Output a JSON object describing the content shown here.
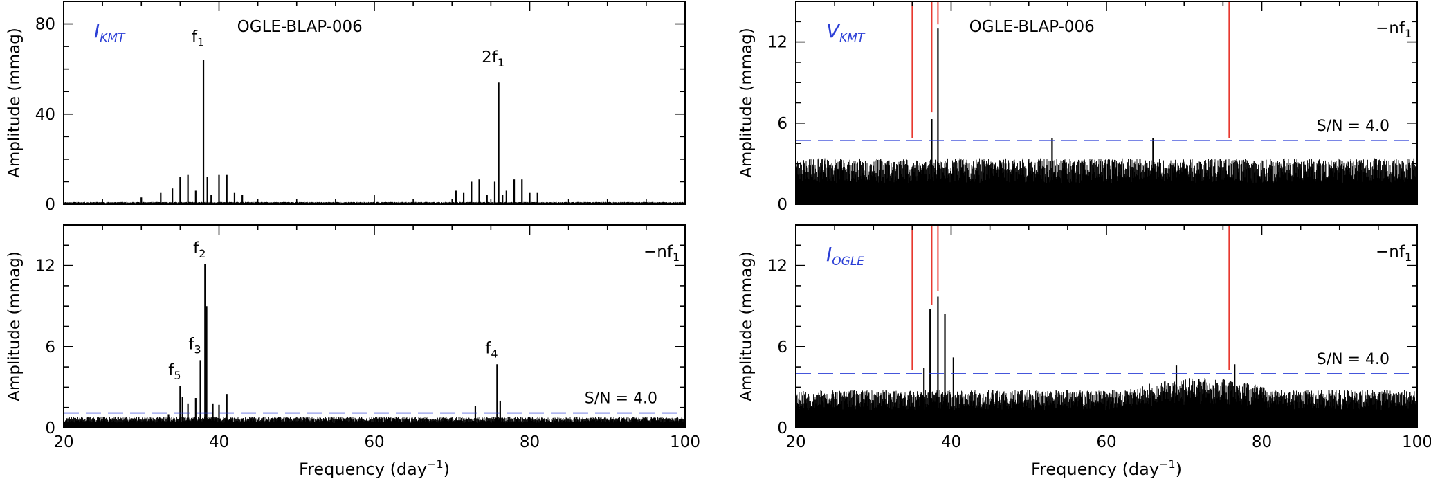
{
  "figure": {
    "xlabel_main": "Frequency (day",
    "xlabel_sup": "−1",
    "xlabel_end": ")",
    "ylabel": "Amplitude (mmag)",
    "colors": {
      "axis": "#000000",
      "red": "#e8382f",
      "blue": "#2b3fd6",
      "black": "#000000"
    }
  },
  "chart_data": [
    {
      "id": "top-left",
      "type": "line",
      "title": "OGLE-BLAP-006",
      "band_label": {
        "main": "I",
        "sub": "KMT"
      },
      "corner_label": "",
      "xlim": [
        20,
        100
      ],
      "ylim": [
        0,
        90
      ],
      "yticks": [
        0,
        40,
        80
      ],
      "xticks": [
        20,
        40,
        60,
        80,
        100
      ],
      "show_xtick_labels": false,
      "noise_level": 1.0,
      "noise_seed": 11,
      "peaks": [
        {
          "x": 30.0,
          "y": 3
        },
        {
          "x": 32.5,
          "y": 5
        },
        {
          "x": 34.0,
          "y": 7
        },
        {
          "x": 35.0,
          "y": 12
        },
        {
          "x": 36.0,
          "y": 13
        },
        {
          "x": 37.0,
          "y": 6
        },
        {
          "x": 38.0,
          "y": 64
        },
        {
          "x": 38.5,
          "y": 12
        },
        {
          "x": 39.0,
          "y": 4
        },
        {
          "x": 40.0,
          "y": 13
        },
        {
          "x": 41.0,
          "y": 13
        },
        {
          "x": 42.0,
          "y": 5
        },
        {
          "x": 43.0,
          "y": 4
        },
        {
          "x": 70.5,
          "y": 6
        },
        {
          "x": 71.5,
          "y": 5
        },
        {
          "x": 72.5,
          "y": 10
        },
        {
          "x": 73.5,
          "y": 11
        },
        {
          "x": 74.5,
          "y": 4
        },
        {
          "x": 75.5,
          "y": 10
        },
        {
          "x": 76.0,
          "y": 54
        },
        {
          "x": 76.5,
          "y": 4
        },
        {
          "x": 77.0,
          "y": 6
        },
        {
          "x": 78.0,
          "y": 11
        },
        {
          "x": 79.0,
          "y": 11
        },
        {
          "x": 80.0,
          "y": 5
        },
        {
          "x": 81.0,
          "y": 5
        }
      ],
      "threshold": null,
      "threshold_label": "",
      "red_lines": [],
      "annotations": [
        {
          "x": 38.0,
          "y": 72,
          "main": "f",
          "sub": "1"
        },
        {
          "x": 76.0,
          "y": 63,
          "main": "2f",
          "sub": "1"
        }
      ]
    },
    {
      "id": "top-right",
      "type": "line",
      "title": "OGLE-BLAP-006",
      "band_label": {
        "main": "V",
        "sub": "KMT"
      },
      "corner_label": {
        "main": "−nf",
        "sub": "1"
      },
      "xlim": [
        20,
        100
      ],
      "ylim": [
        0,
        15
      ],
      "yticks": [
        0,
        6,
        12
      ],
      "xticks": [
        20,
        40,
        60,
        80,
        100
      ],
      "show_xtick_labels": false,
      "noise_level": 3.4,
      "noise_seed": 23,
      "peaks": [
        {
          "x": 37.5,
          "y": 6.3
        },
        {
          "x": 38.3,
          "y": 13.0
        },
        {
          "x": 53.0,
          "y": 4.9
        },
        {
          "x": 66.0,
          "y": 4.9
        }
      ],
      "threshold": 4.7,
      "threshold_label": "S/N = 4.0",
      "red_lines": [
        {
          "x": 35.0,
          "y_from": 4.9
        },
        {
          "x": 37.5,
          "y_from": 6.8
        },
        {
          "x": 38.3,
          "y_from": 13.3
        },
        {
          "x": 75.8,
          "y_from": 4.9
        }
      ],
      "annotations": []
    },
    {
      "id": "bottom-left",
      "type": "line",
      "title": "",
      "band_label": null,
      "corner_label": {
        "main": "−nf",
        "sub": "1"
      },
      "xlim": [
        20,
        100
      ],
      "ylim": [
        0,
        15
      ],
      "yticks": [
        0,
        6,
        12
      ],
      "xticks": [
        20,
        40,
        60,
        80,
        100
      ],
      "show_xtick_labels": true,
      "noise_level": 0.8,
      "noise_seed": 37,
      "peaks": [
        {
          "x": 33.5,
          "y": 1.0
        },
        {
          "x": 35.0,
          "y": 3.1
        },
        {
          "x": 35.3,
          "y": 2.3
        },
        {
          "x": 36.0,
          "y": 1.8
        },
        {
          "x": 37.0,
          "y": 2.2
        },
        {
          "x": 37.6,
          "y": 5.0
        },
        {
          "x": 38.2,
          "y": 12.1
        },
        {
          "x": 38.4,
          "y": 9.0
        },
        {
          "x": 39.2,
          "y": 1.8
        },
        {
          "x": 40.0,
          "y": 1.7
        },
        {
          "x": 41.0,
          "y": 2.5
        },
        {
          "x": 73.0,
          "y": 1.6
        },
        {
          "x": 75.8,
          "y": 4.7
        },
        {
          "x": 76.2,
          "y": 2.0
        }
      ],
      "threshold": 1.1,
      "threshold_label": "S/N = 4.0",
      "red_lines": [],
      "annotations": [
        {
          "x": 35.0,
          "y": 3.9,
          "main": "f",
          "sub": "5"
        },
        {
          "x": 37.6,
          "y": 5.8,
          "main": "f",
          "sub": "3"
        },
        {
          "x": 38.2,
          "y": 12.9,
          "main": "f",
          "sub": "2"
        },
        {
          "x": 75.8,
          "y": 5.5,
          "main": "f",
          "sub": "4"
        }
      ]
    },
    {
      "id": "bottom-right",
      "type": "line",
      "title": "",
      "band_label": {
        "main": "I",
        "sub": "OGLE"
      },
      "corner_label": {
        "main": "−nf",
        "sub": "1"
      },
      "xlim": [
        20,
        100
      ],
      "ylim": [
        0,
        15
      ],
      "yticks": [
        0,
        6,
        12
      ],
      "xticks": [
        20,
        40,
        60,
        80,
        100
      ],
      "show_xtick_labels": true,
      "noise_level": 2.8,
      "noise_seed": 53,
      "noise_bump": {
        "from": 62,
        "to": 82,
        "extra": 0.9
      },
      "peaks": [
        {
          "x": 37.3,
          "y": 8.8
        },
        {
          "x": 38.3,
          "y": 9.7
        },
        {
          "x": 39.2,
          "y": 8.4
        },
        {
          "x": 40.3,
          "y": 5.2
        },
        {
          "x": 36.5,
          "y": 4.4
        },
        {
          "x": 69.0,
          "y": 4.6
        },
        {
          "x": 76.5,
          "y": 4.7
        }
      ],
      "threshold": 4.0,
      "threshold_label": "S/N = 4.0",
      "red_lines": [
        {
          "x": 35.0,
          "y_from": 4.3
        },
        {
          "x": 37.5,
          "y_from": 9.1
        },
        {
          "x": 38.3,
          "y_from": 10.1
        },
        {
          "x": 75.8,
          "y_from": 4.3
        }
      ],
      "annotations": []
    }
  ]
}
